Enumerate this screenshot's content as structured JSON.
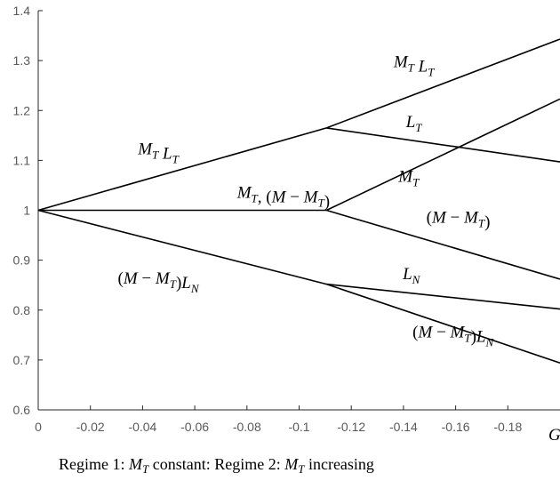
{
  "chart_data": {
    "type": "line",
    "xlim": [
      0,
      -0.2
    ],
    "ylim": [
      0.6,
      1.4
    ],
    "x_ticks": [
      "0",
      "-0.02",
      "-0.04",
      "-0.06",
      "-0.08",
      "-0.1",
      "-0.12",
      "-0.14",
      "-0.16",
      "-0.18"
    ],
    "y_ticks": [
      "0.6",
      "0.7",
      "0.8",
      "0.9",
      "1",
      "1.1",
      "1.2",
      "1.3",
      "1.4"
    ],
    "xlabel": "G",
    "grid": false,
    "series": [
      {
        "key": "mtlt_regime1",
        "x": [
          0,
          -0.1105
        ],
        "y": [
          1.0,
          1.165
        ]
      },
      {
        "key": "mtlt_regime2",
        "x": [
          -0.1105,
          -0.2
        ],
        "y": [
          1.165,
          1.343
        ]
      },
      {
        "key": "lt_regime2",
        "x": [
          -0.1105,
          -0.2
        ],
        "y": [
          1.165,
          1.097
        ]
      },
      {
        "key": "mt_regime1",
        "x": [
          0,
          -0.1105
        ],
        "y": [
          1.0,
          1.0
        ]
      },
      {
        "key": "mt_regime2",
        "x": [
          -0.1105,
          -0.2
        ],
        "y": [
          1.0,
          1.223
        ]
      },
      {
        "key": "mmt_regime2",
        "x": [
          -0.1105,
          -0.2
        ],
        "y": [
          1.0,
          0.862
        ]
      },
      {
        "key": "mmtln_regime1",
        "x": [
          0,
          -0.1105
        ],
        "y": [
          1.0,
          0.852
        ]
      },
      {
        "key": "ln_regime2",
        "x": [
          -0.1105,
          -0.2
        ],
        "y": [
          0.852,
          0.802
        ]
      },
      {
        "key": "mmtln_regime2",
        "x": [
          -0.1105,
          -0.2
        ],
        "y": [
          0.852,
          0.694
        ]
      }
    ],
    "annotations": [
      {
        "key": "a_mtlt_upper",
        "x": -0.144,
        "y": 1.287,
        "text": "M_T L_T"
      },
      {
        "key": "a_lt",
        "x": -0.144,
        "y": 1.167,
        "text": "L_T"
      },
      {
        "key": "a_mtlt_left",
        "x": -0.046,
        "y": 1.112,
        "text": "M_T L_T"
      },
      {
        "key": "a_mt_mid",
        "x": -0.094,
        "y": 1.025,
        "text": "M_T, (M − M_T)"
      },
      {
        "key": "a_mt_right",
        "x": -0.142,
        "y": 1.057,
        "text": "M_T"
      },
      {
        "key": "a_mmt",
        "x": -0.161,
        "y": 0.975,
        "text": "(M − M_T)"
      },
      {
        "key": "a_mmtln_left",
        "x": -0.046,
        "y": 0.853,
        "text": "(M − M_T)L_N"
      },
      {
        "key": "a_ln",
        "x": -0.143,
        "y": 0.862,
        "text": "L_N"
      },
      {
        "key": "a_mmtln_right",
        "x": -0.159,
        "y": 0.745,
        "text": "(M − M_T)L_N"
      }
    ]
  },
  "caption": {
    "part1": "Regime 1: ",
    "var1": "M",
    "sub1": "T",
    "part2": " constant: Regime 2: ",
    "var2": "M",
    "sub2": "T",
    "part3": " increasing"
  }
}
